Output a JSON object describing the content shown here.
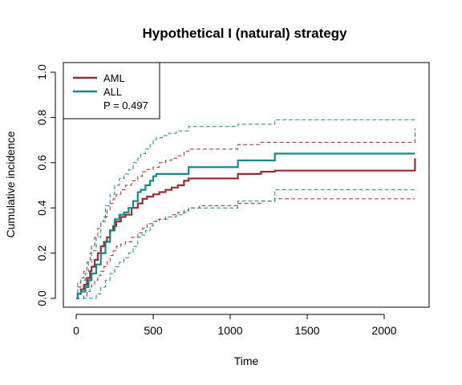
{
  "chart_data": {
    "type": "line",
    "title": "Hypothetical I (natural) strategy",
    "xlabel": "Time",
    "ylabel": "Cumulative incidence",
    "xlim": [
      0,
      2200
    ],
    "ylim": [
      0,
      1
    ],
    "xticks": [
      0,
      500,
      1000,
      1500,
      2000
    ],
    "yticks": [
      0.0,
      0.2,
      0.4,
      0.6,
      0.8,
      1.0
    ],
    "xtick_labels": [
      "0",
      "500",
      "1000",
      "1500",
      "2000"
    ],
    "ytick_labels": [
      "0.0",
      "0.2",
      "0.4",
      "0.6",
      "0.8",
      "1.0"
    ],
    "grid": false,
    "legend_position": "top-left",
    "p_value_label": "P = 0.497",
    "colors": {
      "AML": "#9b2d30",
      "ALL": "#138a8a"
    },
    "series": [
      {
        "name": "AML",
        "x": [
          0,
          10,
          30,
          50,
          70,
          90,
          100,
          120,
          140,
          160,
          180,
          200,
          220,
          240,
          260,
          290,
          320,
          360,
          400,
          430,
          460,
          500,
          540,
          580,
          620,
          660,
          700,
          730,
          760,
          800,
          900,
          1000,
          1050,
          1100,
          1200,
          1290,
          1400,
          1600,
          1800,
          2000,
          2190,
          2200
        ],
        "y": [
          0.0,
          0.02,
          0.04,
          0.06,
          0.09,
          0.12,
          0.14,
          0.17,
          0.2,
          0.23,
          0.25,
          0.27,
          0.3,
          0.32,
          0.34,
          0.36,
          0.37,
          0.4,
          0.42,
          0.44,
          0.45,
          0.46,
          0.47,
          0.48,
          0.49,
          0.5,
          0.52,
          0.53,
          0.53,
          0.53,
          0.53,
          0.53,
          0.55,
          0.55,
          0.56,
          0.565,
          0.565,
          0.565,
          0.565,
          0.565,
          0.565,
          0.62
        ],
        "ci_lower": [
          0.0,
          0.0,
          0.0,
          0.01,
          0.03,
          0.05,
          0.06,
          0.08,
          0.1,
          0.12,
          0.14,
          0.16,
          0.19,
          0.21,
          0.23,
          0.24,
          0.25,
          0.27,
          0.29,
          0.31,
          0.33,
          0.34,
          0.35,
          0.36,
          0.37,
          0.38,
          0.39,
          0.4,
          0.4,
          0.41,
          0.41,
          0.41,
          0.42,
          0.42,
          0.43,
          0.44,
          0.44,
          0.44,
          0.44,
          0.44,
          0.44,
          0.44
        ],
        "ci_upper": [
          0.0,
          0.05,
          0.09,
          0.12,
          0.16,
          0.2,
          0.23,
          0.27,
          0.31,
          0.34,
          0.36,
          0.39,
          0.42,
          0.44,
          0.46,
          0.48,
          0.5,
          0.52,
          0.54,
          0.56,
          0.57,
          0.58,
          0.6,
          0.61,
          0.62,
          0.63,
          0.65,
          0.66,
          0.66,
          0.66,
          0.66,
          0.66,
          0.68,
          0.68,
          0.69,
          0.69,
          0.69,
          0.69,
          0.69,
          0.69,
          0.69,
          0.75
        ]
      },
      {
        "name": "ALL",
        "x": [
          0,
          10,
          30,
          60,
          80,
          100,
          130,
          160,
          190,
          220,
          250,
          280,
          310,
          340,
          370,
          400,
          420,
          450,
          480,
          500,
          520,
          560,
          600,
          650,
          700,
          730,
          800,
          900,
          1000,
          1050,
          1100,
          1200,
          1250,
          1290,
          1400,
          1600,
          1800,
          2000,
          2200
        ],
        "y": [
          0.0,
          0.02,
          0.03,
          0.05,
          0.08,
          0.11,
          0.15,
          0.2,
          0.25,
          0.3,
          0.35,
          0.37,
          0.38,
          0.4,
          0.43,
          0.47,
          0.48,
          0.5,
          0.52,
          0.54,
          0.55,
          0.55,
          0.55,
          0.55,
          0.55,
          0.58,
          0.58,
          0.58,
          0.58,
          0.61,
          0.61,
          0.61,
          0.61,
          0.64,
          0.64,
          0.64,
          0.64,
          0.64,
          0.64
        ],
        "ci_lower": [
          0.0,
          0.0,
          0.0,
          0.0,
          0.0,
          0.0,
          0.02,
          0.05,
          0.08,
          0.11,
          0.14,
          0.16,
          0.18,
          0.2,
          0.23,
          0.27,
          0.28,
          0.3,
          0.32,
          0.34,
          0.35,
          0.35,
          0.36,
          0.37,
          0.38,
          0.4,
          0.4,
          0.4,
          0.4,
          0.43,
          0.43,
          0.43,
          0.43,
          0.48,
          0.48,
          0.48,
          0.48,
          0.48,
          0.48
        ],
        "ci_upper": [
          0.0,
          0.07,
          0.08,
          0.11,
          0.16,
          0.21,
          0.27,
          0.34,
          0.41,
          0.46,
          0.5,
          0.53,
          0.55,
          0.57,
          0.6,
          0.62,
          0.64,
          0.66,
          0.68,
          0.7,
          0.71,
          0.72,
          0.73,
          0.74,
          0.74,
          0.76,
          0.76,
          0.76,
          0.76,
          0.77,
          0.77,
          0.77,
          0.77,
          0.79,
          0.79,
          0.79,
          0.79,
          0.79,
          0.79
        ]
      }
    ]
  }
}
